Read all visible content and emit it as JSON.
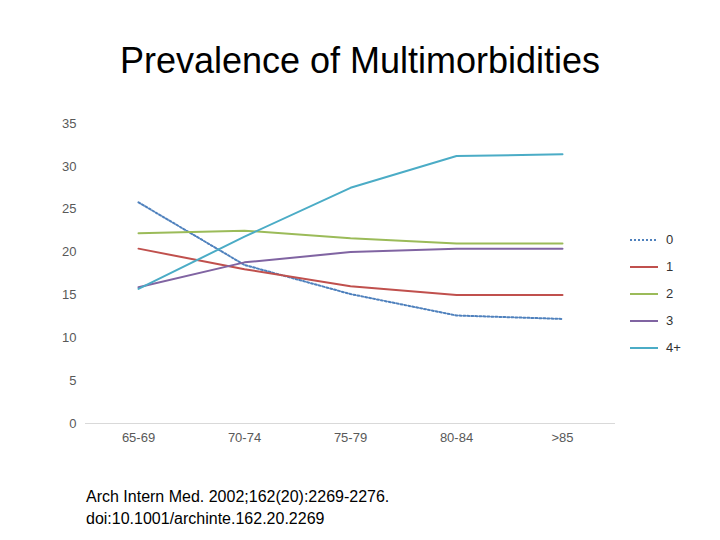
{
  "chart_data": {
    "type": "line",
    "title": "Prevalence of Multimorbidities",
    "annotations": [
      "Arch Intern Med. 2002;162(20):2269-2276.",
      "doi:10.1001/archinte.162.20.2269"
    ],
    "categories": [
      "65-69",
      "70-74",
      "75-79",
      "80-84",
      ">85"
    ],
    "series": [
      {
        "name": "0",
        "color": "#4f81bd",
        "line_style": "dotted",
        "values": [
          25.8,
          18.5,
          15.1,
          12.6,
          12.2
        ]
      },
      {
        "name": "1",
        "color": "#c0504d",
        "line_style": "solid",
        "values": [
          20.4,
          18.0,
          16.0,
          15.0,
          15.0
        ]
      },
      {
        "name": "2",
        "color": "#9bbb59",
        "line_style": "solid",
        "values": [
          22.2,
          22.5,
          21.6,
          21.0,
          21.0
        ]
      },
      {
        "name": "3",
        "color": "#8064a2",
        "line_style": "solid",
        "values": [
          15.9,
          18.8,
          20.0,
          20.4,
          20.4
        ]
      },
      {
        "name": "4+",
        "color": "#4bacc6",
        "line_style": "solid",
        "values": [
          15.7,
          21.8,
          27.5,
          31.2,
          31.4
        ]
      }
    ],
    "ylim": [
      0,
      35
    ],
    "yticks": [
      0,
      5,
      10,
      15,
      20,
      25,
      30,
      35
    ],
    "grid": false,
    "legend": "right"
  }
}
